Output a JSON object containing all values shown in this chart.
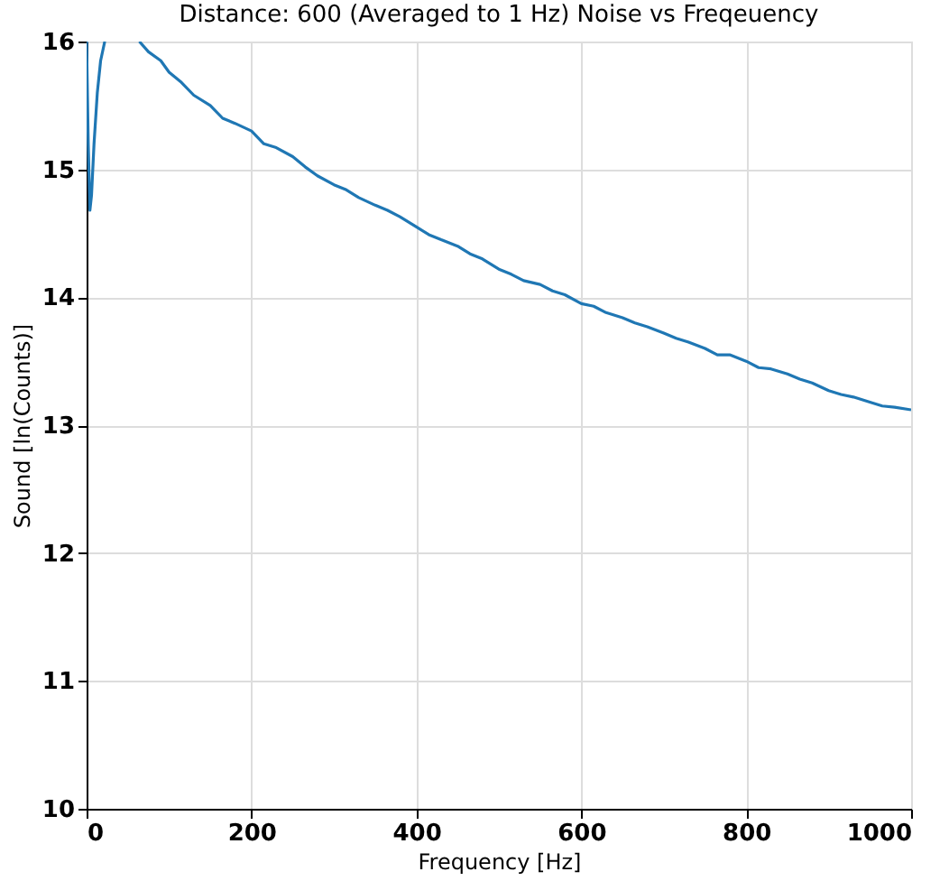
{
  "chart_data": {
    "type": "line",
    "title": "Distance: 600 (Averaged to 1 Hz) Noise vs Freqeuency",
    "xlabel": "Frequency [Hz]",
    "ylabel": "Sound [ln(Counts)]",
    "x": [
      0,
      2,
      4,
      6,
      9,
      13,
      17,
      22,
      40,
      64,
      75,
      90,
      100,
      115,
      130,
      150,
      165,
      180,
      200,
      215,
      230,
      250,
      265,
      280,
      300,
      315,
      330,
      350,
      365,
      380,
      400,
      415,
      430,
      450,
      465,
      480,
      500,
      515,
      530,
      550,
      565,
      580,
      600,
      615,
      630,
      650,
      665,
      680,
      700,
      715,
      730,
      750,
      765,
      780,
      800,
      815,
      830,
      850,
      865,
      880,
      900,
      915,
      930,
      950,
      965,
      980,
      1000
    ],
    "series": [
      {
        "color": "#1f77b4",
        "values": [
          16,
          15.2,
          14.68,
          14.8,
          15.2,
          15.6,
          15.85,
          16,
          null,
          16,
          15.92,
          15.85,
          15.76,
          15.68,
          15.58,
          15.5,
          15.4,
          15.36,
          15.3,
          15.2,
          15.17,
          15.1,
          15.02,
          14.95,
          14.88,
          14.84,
          14.78,
          14.72,
          14.68,
          14.63,
          14.55,
          14.49,
          14.45,
          14.4,
          14.34,
          14.3,
          14.22,
          14.18,
          14.13,
          14.1,
          14.05,
          14.02,
          13.95,
          13.93,
          13.88,
          13.84,
          13.8,
          13.77,
          13.72,
          13.68,
          13.65,
          13.6,
          13.55,
          13.55,
          13.5,
          13.45,
          13.44,
          13.4,
          13.36,
          13.33,
          13.27,
          13.24,
          13.22,
          13.18,
          13.15,
          13.14,
          13.12
        ]
      }
    ],
    "xlim": [
      0,
      1000
    ],
    "ylim": [
      10,
      16
    ],
    "xticks": [
      0,
      200,
      400,
      600,
      800,
      1000
    ],
    "yticks": [
      10,
      11,
      12,
      13,
      14,
      15,
      16
    ],
    "grid": true,
    "line_style": "solid",
    "marker": "none"
  }
}
